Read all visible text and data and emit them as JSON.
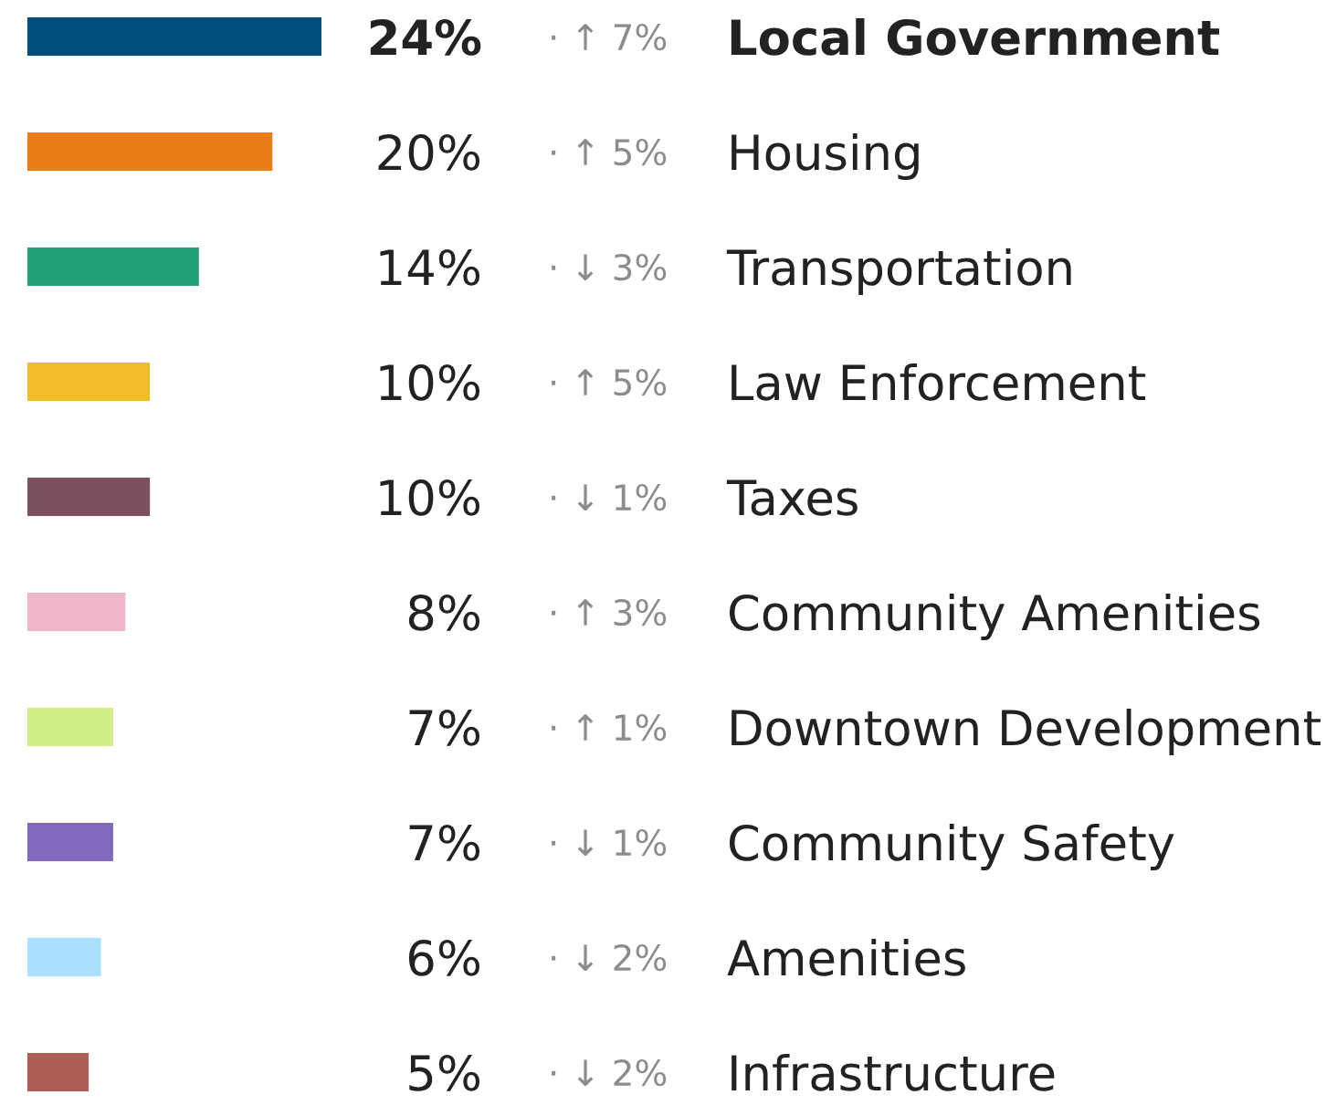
{
  "chart_data": {
    "type": "bar",
    "orientation": "horizontal",
    "tick_labels": "y",
    "categories": [
      "Local Government",
      "Housing",
      "Transportation",
      "Law Enforcement",
      "Taxes",
      "Community Amenities",
      "Downtown Development",
      "Community Safety",
      "Amenities",
      "Infrastructure"
    ],
    "values": [
      24,
      20,
      14,
      10,
      10,
      8,
      7,
      7,
      6,
      5
    ],
    "colors": [
      "#014e7a",
      "#e97d18",
      "#22a07c",
      "#f2bd2a",
      "#7b5160",
      "#efb8c8",
      "#d1ef85",
      "#8169bd",
      "#aadfff",
      "#ad5d56"
    ],
    "value_labels": [
      "24%",
      "20%",
      "14%",
      "10%",
      "10%",
      "8%",
      "7%",
      "7%",
      "6%",
      "5%"
    ],
    "annotations": [
      "· ↑ 7%",
      "· ↑ 5%",
      "· ↓ 3%",
      "· ↑ 5%",
      "· ↓ 1%",
      "· ↑ 3%",
      "· ↑ 1%",
      "· ↓ 1%",
      "· ↓ 2%",
      "· ↓ 2%"
    ]
  }
}
